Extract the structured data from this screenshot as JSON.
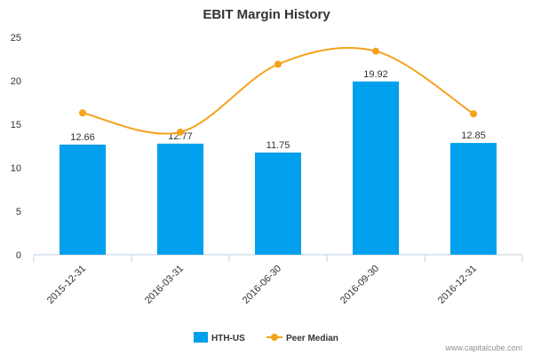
{
  "chart_data": {
    "type": "bar",
    "title": "EBIT Margin History",
    "xlabel": "",
    "ylabel": "",
    "categories": [
      "2015-12-31",
      "2016-03-31",
      "2016-06-30",
      "2016-09-30",
      "2016-12-31"
    ],
    "ylim": [
      0,
      25
    ],
    "yticks": [
      0,
      5,
      10,
      15,
      20,
      25
    ],
    "grid": false,
    "legend_placement": "bottom-center",
    "series": [
      {
        "name": "HTH-US",
        "type": "bar",
        "color": "#00a0ec",
        "values": [
          12.66,
          12.77,
          11.75,
          19.92,
          12.85
        ],
        "labels": [
          "12.66",
          "12.77",
          "11.75",
          "19.92",
          "12.85"
        ]
      },
      {
        "name": "Peer Median",
        "type": "line",
        "color": "#f5a21d",
        "values": [
          16.3,
          14.1,
          21.9,
          23.4,
          16.2
        ]
      }
    ]
  },
  "credit": "www.capitalcube.com"
}
